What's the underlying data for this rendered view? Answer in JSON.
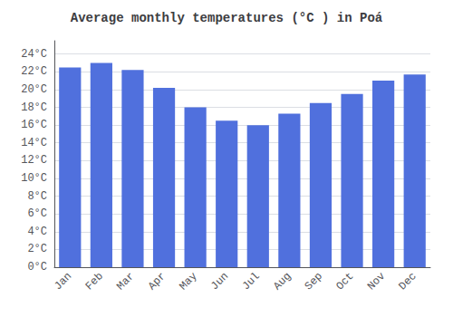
{
  "chart_data": {
    "type": "bar",
    "title": "Average monthly temperatures (°C ) in Poá",
    "categories": [
      "Jan",
      "Feb",
      "Mar",
      "Apr",
      "May",
      "Jun",
      "Jul",
      "Aug",
      "Sep",
      "Oct",
      "Nov",
      "Dec"
    ],
    "values": [
      22.5,
      23.0,
      22.2,
      20.2,
      18.0,
      16.5,
      16.0,
      17.3,
      18.5,
      19.5,
      21.0,
      21.7
    ],
    "ylim": [
      0,
      25.5
    ],
    "yticks": [
      {
        "value": 0,
        "label": "0°C"
      },
      {
        "value": 2,
        "label": "2°C"
      },
      {
        "value": 4,
        "label": "4°C"
      },
      {
        "value": 6,
        "label": "6°C"
      },
      {
        "value": 8,
        "label": "8°C"
      },
      {
        "value": 10,
        "label": "10°C"
      },
      {
        "value": 12,
        "label": "12°C"
      },
      {
        "value": 14,
        "label": "14°C"
      },
      {
        "value": 16,
        "label": "16°C"
      },
      {
        "value": 18,
        "label": "18°C"
      },
      {
        "value": 20,
        "label": "20°C"
      },
      {
        "value": 22,
        "label": "22°C"
      },
      {
        "value": 24,
        "label": "24°C"
      }
    ],
    "grid": true
  }
}
